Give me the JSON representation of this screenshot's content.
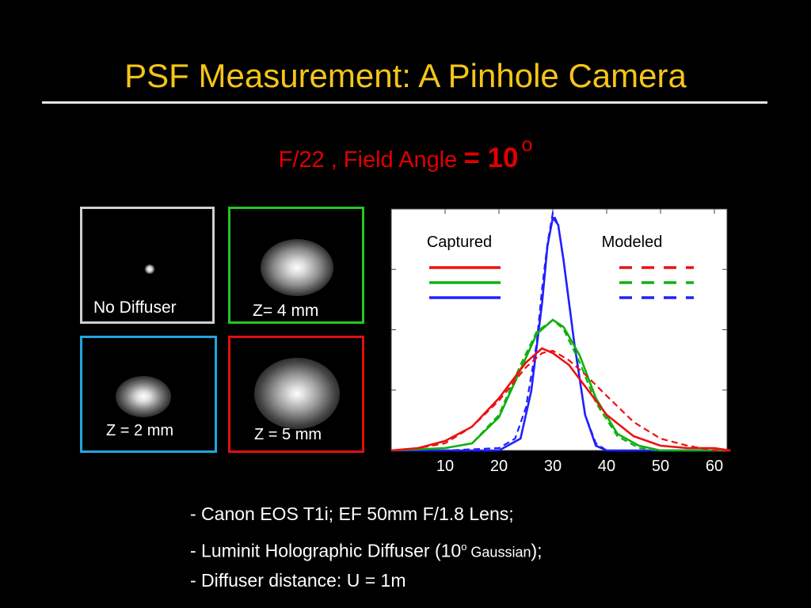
{
  "slide": {
    "title": "PSF Measurement: A Pinhole Camera",
    "subtitle_prefix": "F/22 , Field Angle ",
    "subtitle_value": "= 10",
    "subtitle_degree": "o"
  },
  "panels": [
    {
      "label": "No Diffuser",
      "border_color": "#cfcfcf"
    },
    {
      "label": "Z= 4 mm",
      "border_color": "#27c427"
    },
    {
      "label": "Z = 2 mm",
      "border_color": "#22a5de"
    },
    {
      "label": "Z = 5 mm",
      "border_color": "#e01010"
    }
  ],
  "chart_data": {
    "type": "line",
    "x_ticks": [
      10,
      20,
      30,
      40,
      50,
      60
    ],
    "xlim": [
      0,
      63
    ],
    "legend": {
      "captured": "Captured",
      "modeled": "Modeled"
    },
    "series": [
      {
        "color": "#2020ff",
        "captured": {
          "x": [
            0,
            10,
            20,
            24,
            26,
            28,
            29,
            30,
            31,
            32,
            34,
            36,
            38,
            40,
            50,
            63
          ],
          "y": [
            0,
            0,
            0,
            0.05,
            0.25,
            0.62,
            0.86,
            0.98,
            0.95,
            0.8,
            0.45,
            0.15,
            0.02,
            0,
            0,
            0
          ]
        },
        "modeled": {
          "x": [
            0,
            10,
            20,
            23,
            25,
            27,
            28,
            29,
            30,
            31,
            32,
            34,
            36,
            38,
            40,
            50,
            63
          ],
          "y": [
            0,
            0,
            0.01,
            0.05,
            0.18,
            0.45,
            0.68,
            0.87,
            1.0,
            0.95,
            0.8,
            0.45,
            0.15,
            0.03,
            0,
            0,
            0
          ]
        }
      },
      {
        "color": "#10b010",
        "captured": {
          "x": [
            0,
            10,
            15,
            20,
            24,
            27,
            30,
            32,
            35,
            38,
            42,
            46,
            50,
            63
          ],
          "y": [
            0,
            0.01,
            0.03,
            0.14,
            0.34,
            0.49,
            0.55,
            0.52,
            0.4,
            0.22,
            0.07,
            0.02,
            0,
            0
          ]
        },
        "modeled": {
          "x": [
            0,
            10,
            15,
            20,
            24,
            27,
            30,
            32,
            35,
            38,
            42,
            46,
            50,
            63
          ],
          "y": [
            0,
            0.01,
            0.03,
            0.15,
            0.36,
            0.5,
            0.55,
            0.51,
            0.37,
            0.2,
            0.06,
            0.01,
            0,
            0
          ]
        }
      },
      {
        "color": "#ee1010",
        "captured": {
          "x": [
            0,
            5,
            10,
            15,
            20,
            25,
            28,
            30,
            33,
            36,
            40,
            45,
            50,
            55,
            60,
            63
          ],
          "y": [
            0,
            0.01,
            0.04,
            0.1,
            0.22,
            0.37,
            0.43,
            0.41,
            0.36,
            0.27,
            0.15,
            0.06,
            0.02,
            0.01,
            0.01,
            0
          ]
        },
        "modeled": {
          "x": [
            0,
            5,
            10,
            15,
            20,
            25,
            28,
            30,
            33,
            36,
            40,
            45,
            50,
            55,
            60,
            63
          ],
          "y": [
            0,
            0.01,
            0.03,
            0.1,
            0.21,
            0.35,
            0.41,
            0.42,
            0.38,
            0.32,
            0.23,
            0.12,
            0.05,
            0.02,
            0,
            0
          ]
        }
      }
    ]
  },
  "bullets": {
    "b1": "- Canon EOS T1i; EF 50mm F/1.8 Lens;",
    "b2_pre": "- Luminit Holographic Diffuser ",
    "b2_paren_open": "(10",
    "b2_sup": "o",
    "b2_small": " Gaussian",
    "b2_end": ");",
    "b3": "- Diffuser distance: U = 1m"
  }
}
